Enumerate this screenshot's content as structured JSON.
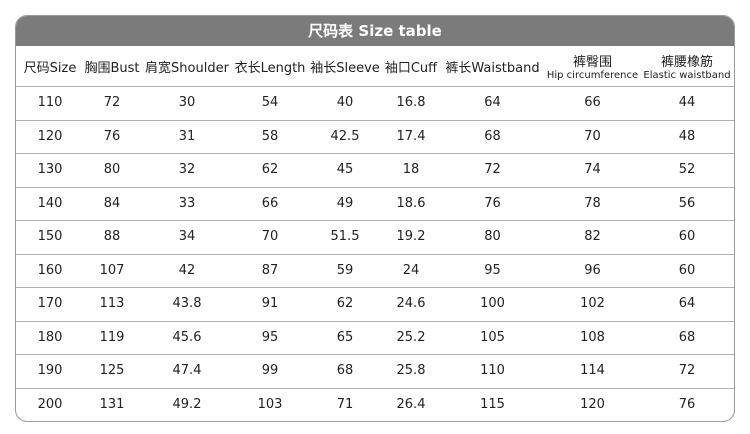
{
  "header": {
    "title": "尺码表 Size table"
  },
  "table": {
    "columns": [
      [
        "尺码Size"
      ],
      [
        "胸围Bust"
      ],
      [
        "肩宽Shoulder"
      ],
      [
        "衣长Length"
      ],
      [
        "袖长Sleeve"
      ],
      [
        "袖口Cuff"
      ],
      [
        "裤长Waistband"
      ],
      [
        "裤臀围",
        "Hip circumference"
      ],
      [
        "裤腰橡筋",
        "Elastic waistband"
      ]
    ],
    "rows": [
      [
        110,
        72,
        30,
        54,
        40,
        16.8,
        64,
        66,
        44
      ],
      [
        120,
        76,
        31,
        58,
        42.5,
        17.4,
        68,
        70,
        48
      ],
      [
        130,
        80,
        32,
        62,
        45,
        18,
        72,
        74,
        52
      ],
      [
        140,
        84,
        33,
        66,
        49,
        18.6,
        76,
        78,
        56
      ],
      [
        150,
        88,
        34,
        70,
        51.5,
        19.2,
        80,
        82,
        60
      ],
      [
        160,
        107,
        42,
        87,
        59,
        24,
        95,
        96,
        60
      ],
      [
        170,
        113,
        43.8,
        91,
        62,
        24.6,
        100,
        102,
        64
      ],
      [
        180,
        119,
        45.6,
        95,
        65,
        25.2,
        105,
        108,
        68
      ],
      [
        190,
        125,
        47.4,
        99,
        68,
        25.8,
        110,
        114,
        72
      ],
      [
        200,
        131,
        49.2,
        103,
        71,
        26.4,
        115,
        120,
        76
      ]
    ]
  }
}
